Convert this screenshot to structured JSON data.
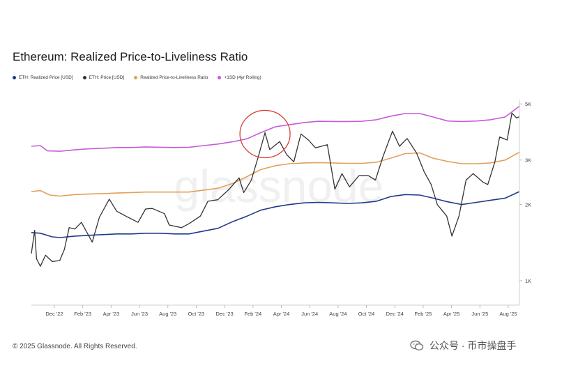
{
  "title": "Ethereum: Realized Price-to-Liveliness Ratio",
  "legend": [
    {
      "label": "ETH: Realized Price [USD]",
      "color": "#1f3a8a"
    },
    {
      "label": "ETH: Price [USD]",
      "color": "#333333"
    },
    {
      "label": "Realized Price-to-Liveliness Ratio",
      "color": "#e0a15a"
    },
    {
      "label": "+1SD (4yr Rolling)",
      "color": "#c65bd8"
    }
  ],
  "watermark": "glassnode",
  "footer": "© 2025 Glassnode. All Rights Reserved.",
  "wechat_label": "公众号 · 币市操盘手",
  "chart_data": {
    "type": "line",
    "title": "Ethereum: Realized Price-to-Liveliness Ratio",
    "x_tick_labels": [
      "Dec '22",
      "Feb '23",
      "Apr '23",
      "Jun '23",
      "Aug '23",
      "Oct '23",
      "Dec '23",
      "Feb '24",
      "Apr '24",
      "Jun '24",
      "Aug '24",
      "Oct '24",
      "Dec '24",
      "Feb '25",
      "Apr '25",
      "Jun '25",
      "Aug '25"
    ],
    "y_scale": "log",
    "y_ticks": [
      {
        "value": 1000,
        "label": "1K"
      },
      {
        "value": 2000,
        "label": "2K"
      },
      {
        "value": 3000,
        "label": "3K"
      },
      {
        "value": 5000,
        "label": "5K"
      }
    ],
    "ylim": [
      800,
      5200
    ],
    "x_range": [
      "2022-11-01",
      "2025-08-31"
    ],
    "annotation": {
      "type": "circle",
      "date": "2024-03-10",
      "value": 3800
    },
    "series": [
      {
        "name": "+1SD (4yr Rolling)",
        "color": "#c65bd8",
        "points": [
          [
            "2022-11-01",
            3400
          ],
          [
            "2022-11-20",
            3420
          ],
          [
            "2022-12-05",
            3260
          ],
          [
            "2023-01-01",
            3250
          ],
          [
            "2023-02-01",
            3290
          ],
          [
            "2023-03-01",
            3320
          ],
          [
            "2023-04-01",
            3340
          ],
          [
            "2023-05-01",
            3360
          ],
          [
            "2023-06-01",
            3360
          ],
          [
            "2023-07-01",
            3380
          ],
          [
            "2023-08-01",
            3370
          ],
          [
            "2023-09-01",
            3360
          ],
          [
            "2023-10-01",
            3370
          ],
          [
            "2023-11-01",
            3420
          ],
          [
            "2023-12-01",
            3470
          ],
          [
            "2024-01-01",
            3540
          ],
          [
            "2024-02-01",
            3640
          ],
          [
            "2024-03-01",
            3850
          ],
          [
            "2024-04-01",
            4060
          ],
          [
            "2024-05-01",
            4140
          ],
          [
            "2024-06-01",
            4220
          ],
          [
            "2024-07-01",
            4270
          ],
          [
            "2024-08-01",
            4260
          ],
          [
            "2024-09-01",
            4260
          ],
          [
            "2024-10-01",
            4270
          ],
          [
            "2024-11-01",
            4330
          ],
          [
            "2024-12-01",
            4470
          ],
          [
            "2025-01-01",
            4580
          ],
          [
            "2025-02-01",
            4580
          ],
          [
            "2025-03-01",
            4440
          ],
          [
            "2025-04-01",
            4280
          ],
          [
            "2025-05-01",
            4260
          ],
          [
            "2025-06-01",
            4280
          ],
          [
            "2025-07-01",
            4330
          ],
          [
            "2025-08-01",
            4440
          ],
          [
            "2025-08-31",
            4900
          ]
        ]
      },
      {
        "name": "Realized Price-to-Liveliness Ratio",
        "color": "#e0a15a",
        "points": [
          [
            "2022-11-01",
            2250
          ],
          [
            "2022-11-20",
            2270
          ],
          [
            "2022-12-10",
            2180
          ],
          [
            "2023-01-01",
            2160
          ],
          [
            "2023-02-01",
            2190
          ],
          [
            "2023-03-01",
            2200
          ],
          [
            "2023-04-01",
            2210
          ],
          [
            "2023-05-01",
            2220
          ],
          [
            "2023-06-01",
            2230
          ],
          [
            "2023-07-01",
            2240
          ],
          [
            "2023-08-01",
            2240
          ],
          [
            "2023-09-01",
            2240
          ],
          [
            "2023-10-01",
            2240
          ],
          [
            "2023-11-01",
            2280
          ],
          [
            "2023-12-01",
            2320
          ],
          [
            "2024-01-01",
            2420
          ],
          [
            "2024-02-01",
            2580
          ],
          [
            "2024-03-01",
            2750
          ],
          [
            "2024-04-01",
            2850
          ],
          [
            "2024-05-01",
            2900
          ],
          [
            "2024-06-01",
            2920
          ],
          [
            "2024-07-01",
            2930
          ],
          [
            "2024-08-01",
            2920
          ],
          [
            "2024-09-01",
            2910
          ],
          [
            "2024-10-01",
            2910
          ],
          [
            "2024-11-01",
            2940
          ],
          [
            "2024-12-01",
            3050
          ],
          [
            "2025-01-01",
            3180
          ],
          [
            "2025-02-01",
            3200
          ],
          [
            "2025-03-01",
            3050
          ],
          [
            "2025-04-01",
            2960
          ],
          [
            "2025-05-01",
            2900
          ],
          [
            "2025-06-01",
            2900
          ],
          [
            "2025-07-01",
            2920
          ],
          [
            "2025-08-01",
            3000
          ],
          [
            "2025-08-31",
            3220
          ]
        ]
      },
      {
        "name": "ETH: Realized Price [USD]",
        "color": "#1f3a8a",
        "points": [
          [
            "2022-11-01",
            1550
          ],
          [
            "2022-11-20",
            1540
          ],
          [
            "2022-12-15",
            1490
          ],
          [
            "2023-01-01",
            1480
          ],
          [
            "2023-02-01",
            1500
          ],
          [
            "2023-03-01",
            1510
          ],
          [
            "2023-04-01",
            1520
          ],
          [
            "2023-05-01",
            1530
          ],
          [
            "2023-06-01",
            1530
          ],
          [
            "2023-07-01",
            1540
          ],
          [
            "2023-08-01",
            1540
          ],
          [
            "2023-09-01",
            1530
          ],
          [
            "2023-10-01",
            1530
          ],
          [
            "2023-11-01",
            1570
          ],
          [
            "2023-12-01",
            1610
          ],
          [
            "2024-01-01",
            1710
          ],
          [
            "2024-02-01",
            1800
          ],
          [
            "2024-03-01",
            1900
          ],
          [
            "2024-04-01",
            1960
          ],
          [
            "2024-05-01",
            2000
          ],
          [
            "2024-06-01",
            2030
          ],
          [
            "2024-07-01",
            2040
          ],
          [
            "2024-08-01",
            2030
          ],
          [
            "2024-09-01",
            2020
          ],
          [
            "2024-10-01",
            2030
          ],
          [
            "2024-11-01",
            2060
          ],
          [
            "2024-12-01",
            2150
          ],
          [
            "2025-01-01",
            2190
          ],
          [
            "2025-02-01",
            2180
          ],
          [
            "2025-03-01",
            2120
          ],
          [
            "2025-04-01",
            2050
          ],
          [
            "2025-05-01",
            2000
          ],
          [
            "2025-06-01",
            2040
          ],
          [
            "2025-07-01",
            2080
          ],
          [
            "2025-08-01",
            2120
          ],
          [
            "2025-08-31",
            2250
          ]
        ]
      },
      {
        "name": "ETH: Price [USD]",
        "color": "#333333",
        "points": [
          [
            "2022-11-01",
            1280
          ],
          [
            "2022-11-08",
            1580
          ],
          [
            "2022-11-12",
            1220
          ],
          [
            "2022-11-20",
            1140
          ],
          [
            "2022-12-01",
            1260
          ],
          [
            "2022-12-15",
            1190
          ],
          [
            "2022-12-31",
            1200
          ],
          [
            "2023-01-10",
            1330
          ],
          [
            "2023-01-20",
            1620
          ],
          [
            "2023-02-01",
            1600
          ],
          [
            "2023-02-15",
            1700
          ],
          [
            "2023-03-10",
            1420
          ],
          [
            "2023-03-25",
            1780
          ],
          [
            "2023-04-15",
            2100
          ],
          [
            "2023-05-01",
            1880
          ],
          [
            "2023-05-20",
            1800
          ],
          [
            "2023-06-15",
            1700
          ],
          [
            "2023-07-01",
            1920
          ],
          [
            "2023-07-15",
            1930
          ],
          [
            "2023-08-10",
            1840
          ],
          [
            "2023-08-20",
            1660
          ],
          [
            "2023-09-15",
            1620
          ],
          [
            "2023-10-01",
            1680
          ],
          [
            "2023-10-25",
            1800
          ],
          [
            "2023-11-10",
            2060
          ],
          [
            "2023-12-01",
            2090
          ],
          [
            "2023-12-25",
            2300
          ],
          [
            "2024-01-15",
            2550
          ],
          [
            "2024-01-25",
            2230
          ],
          [
            "2024-02-10",
            2500
          ],
          [
            "2024-02-25",
            3100
          ],
          [
            "2024-03-10",
            3850
          ],
          [
            "2024-03-20",
            3300
          ],
          [
            "2024-04-10",
            3550
          ],
          [
            "2024-04-25",
            3150
          ],
          [
            "2024-05-10",
            2950
          ],
          [
            "2024-05-25",
            3800
          ],
          [
            "2024-06-10",
            3600
          ],
          [
            "2024-06-25",
            3350
          ],
          [
            "2024-07-20",
            3450
          ],
          [
            "2024-08-05",
            2300
          ],
          [
            "2024-08-20",
            2650
          ],
          [
            "2024-09-05",
            2350
          ],
          [
            "2024-09-25",
            2600
          ],
          [
            "2024-10-15",
            2600
          ],
          [
            "2024-10-30",
            2500
          ],
          [
            "2024-11-15",
            3100
          ],
          [
            "2024-12-05",
            3900
          ],
          [
            "2024-12-20",
            3400
          ],
          [
            "2025-01-05",
            3650
          ],
          [
            "2025-01-25",
            3200
          ],
          [
            "2025-02-10",
            2700
          ],
          [
            "2025-02-25",
            2400
          ],
          [
            "2025-03-10",
            2000
          ],
          [
            "2025-03-30",
            1800
          ],
          [
            "2025-04-10",
            1500
          ],
          [
            "2025-04-25",
            1800
          ],
          [
            "2025-05-10",
            2500
          ],
          [
            "2025-05-25",
            2650
          ],
          [
            "2025-06-15",
            2450
          ],
          [
            "2025-06-25",
            2400
          ],
          [
            "2025-07-10",
            2950
          ],
          [
            "2025-07-20",
            3700
          ],
          [
            "2025-08-05",
            3600
          ],
          [
            "2025-08-15",
            4600
          ],
          [
            "2025-08-25",
            4400
          ],
          [
            "2025-08-31",
            4450
          ]
        ]
      }
    ]
  }
}
